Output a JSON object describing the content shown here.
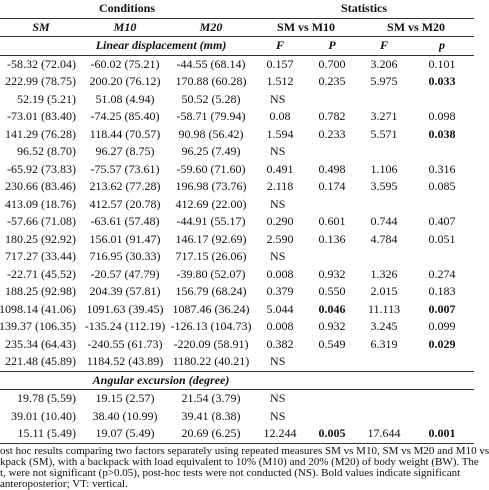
{
  "table": {
    "header": [
      "Conditions",
      "Statistics"
    ],
    "subheader": [
      "SM",
      "M10",
      "M20",
      "SM vs M10",
      "SM vs M20"
    ],
    "sections": [
      {
        "title": "Linear displacement (mm)",
        "stat_headers": [
          "F",
          "P",
          "F",
          "p"
        ],
        "rows": [
          {
            "cells": [
              "-58.32 (72.04)",
              "-60.02 (75.21)",
              "-44.55 (68.14)",
              "0.157",
              "0.700",
              "3.206",
              "0.101"
            ],
            "bold": []
          },
          {
            "cells": [
              "222.99 (78.75)",
              "200.20 (76.12)",
              "170.88 (60.28)",
              "1.512",
              "0.235",
              "5.975",
              "0.033"
            ],
            "bold": [
              6
            ]
          },
          {
            "cells": [
              "52.19 (5.21)",
              "51.08 (4.94)",
              "50.52 (5.28)",
              "NS"
            ],
            "bold": []
          },
          {
            "cells": [
              "-73.01 (83.40)",
              "-74.25 (85.40)",
              "-58.71 (79.94)",
              "0.08",
              "0.782",
              "3.271",
              "0.098"
            ],
            "bold": []
          },
          {
            "cells": [
              "141.29 (76.28)",
              "118.44 (70.57)",
              "90.98 (56.42)",
              "1.594",
              "0.233",
              "5.571",
              "0.038"
            ],
            "bold": [
              6
            ]
          },
          {
            "cells": [
              "96.52 (8.70)",
              "96.27 (8.75)",
              "96.25 (7.49)",
              "NS"
            ],
            "bold": []
          },
          {
            "cells": [
              "-65.92 (73.83)",
              "-75.57 (73.61)",
              "-59.60 (71.60)",
              "0.491",
              "0.498",
              "1.106",
              "0.316"
            ],
            "bold": []
          },
          {
            "cells": [
              "230.66 (83.46)",
              "213.62 (77.28)",
              "196.98 (73.76)",
              "2.118",
              "0.174",
              "3.595",
              "0.085"
            ],
            "bold": []
          },
          {
            "cells": [
              "413.09 (18.76)",
              "412.57 (20.78)",
              "412.69 (22.00)",
              "NS"
            ],
            "bold": []
          },
          {
            "cells": [
              "-57.66 (71.08)",
              "-63.61 (57.48)",
              "-44.91 (55.17)",
              "0.290",
              "0.601",
              "0.744",
              "0.407"
            ],
            "bold": []
          },
          {
            "cells": [
              "180.25 (92.92)",
              "156.01 (91.47)",
              "146.17 (92.69)",
              "2.590",
              "0.136",
              "4.784",
              "0.051"
            ],
            "bold": []
          },
          {
            "cells": [
              "717.27 (33.44)",
              "716.95 (30.33)",
              "717.15 (26.06)",
              "NS"
            ],
            "bold": []
          },
          {
            "cells": [
              "-22.71 (45.52)",
              "-20.57 (47.79)",
              "-39.80 (52.07)",
              "0.008",
              "0.932",
              "1.326",
              "0.274"
            ],
            "bold": []
          },
          {
            "cells": [
              "188.25 (92.98)",
              "204.39 (57.81)",
              "156.79 (68.24)",
              "0.379",
              "0.550",
              "2.015",
              "0.183"
            ],
            "bold": []
          },
          {
            "cells": [
              "1098.14 (41.06)",
              "1091.63 (39.45)",
              "1087.46 (36.24)",
              "5.044",
              "0.046",
              "11.113",
              "0.007"
            ],
            "bold": [
              4,
              6
            ]
          },
          {
            "cells": [
              "139.37 (106.35)",
              "-135.24 (112.19)",
              "-126.13 (104.73)",
              "0.008",
              "0.932",
              "3.245",
              "0.099"
            ],
            "bold": []
          },
          {
            "cells": [
              "235.34 (64.43)",
              "-240.55 (61.73)",
              "-220.09 (58.91)",
              "0.382",
              "0.549",
              "6.319",
              "0.029"
            ],
            "bold": [
              6
            ]
          },
          {
            "cells": [
              "221.48 (45.89)",
              "1184.52 (43.89)",
              "1180.22 (40.21)",
              "NS"
            ],
            "bold": []
          }
        ]
      },
      {
        "title": "Angular excursion (degree)",
        "stat_headers": [],
        "rows": [
          {
            "cells": [
              "19.78 (5.59)",
              "19.15 (2.57)",
              "21.54 (3.79)",
              "NS"
            ],
            "bold": []
          },
          {
            "cells": [
              "39.01 (10.40)",
              "38.40 (10.99)",
              "39.41 (8.38)",
              "NS"
            ],
            "bold": []
          },
          {
            "cells": [
              "15.11 (5.49)",
              "19.07 (5.49)",
              "20.69 (6.25)",
              "12.244",
              "0.005",
              "17.644",
              "0.001"
            ],
            "bold": [
              4,
              6
            ]
          }
        ]
      }
    ],
    "footnote": [
      "ost hoc results comparing two factors separately using repeated measures SM vs M10, SM vs M20 and M10 vs",
      "kpack (SM), with a backpack with load equivalent to 10% (M10) and 20% (M20) of body weight (BW). The",
      "t, were not significant (p>0.05), post-hoc tests were not conducted (NS). Bold values indicate significant",
      "anteroposterior; VT: vertical."
    ]
  }
}
